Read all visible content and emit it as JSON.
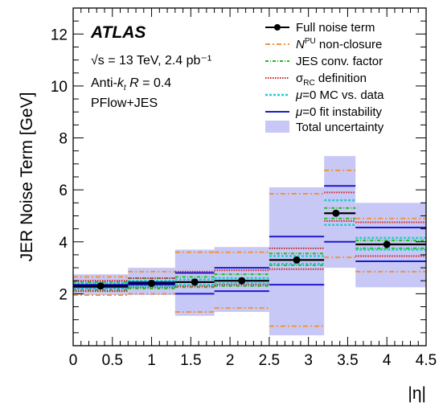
{
  "chart_data": {
    "type": "scatter",
    "xlabel": "|η|",
    "ylabel": "JER Noise Term [GeV]",
    "xlim": [
      0,
      4.5
    ],
    "ylim": [
      0,
      13
    ],
    "x_ticks": [
      "0",
      "0.5",
      "1",
      "1.5",
      "2",
      "2.5",
      "3",
      "3.5",
      "4",
      "4.5"
    ],
    "y_ticks": [
      "2",
      "4",
      "6",
      "8",
      "10",
      "12"
    ],
    "annotations": {
      "experiment": "ATLAS",
      "energy": "√s = 13 TeV, 2.4 pb⁻¹",
      "algorithm": "Anti-k  R = 0.4",
      "reco": "PFlow+JES"
    },
    "legend_placement": "top-right",
    "legend": [
      "Full noise term",
      "N^PU non-closure",
      "JES conv. factor",
      "σRC definition",
      "μ=0 MC vs. data",
      "μ=0 fit instability",
      "Total uncertainty"
    ],
    "colors": {
      "data": "#000000",
      "npu_nonclosure": "#f0943c",
      "jes_conv": "#22bb22",
      "sigma_rc": "#cc2222",
      "mu0_mc_data": "#22cccc",
      "mu0_fit": "#1a1acc",
      "total_unc": "#c8c8f6"
    },
    "bins": [
      {
        "lo": 0.0,
        "hi": 0.7,
        "x": 0.35,
        "y": 2.3,
        "total": [
          1.95,
          2.75
        ],
        "npu": [
          1.95,
          2.65
        ],
        "jes": [
          2.15,
          2.45
        ],
        "rc": [
          2.1,
          2.5
        ],
        "mc": [
          2.2,
          2.4
        ],
        "fit": [
          2.25,
          2.35
        ]
      },
      {
        "lo": 0.7,
        "hi": 1.3,
        "x": 1.0,
        "y": 2.4,
        "total": [
          1.95,
          3.0
        ],
        "npu": [
          2.0,
          2.85
        ],
        "jes": [
          2.2,
          2.6
        ],
        "rc": [
          2.25,
          2.6
        ],
        "mc": [
          2.3,
          2.5
        ],
        "fit": [
          2.35,
          2.45
        ]
      },
      {
        "lo": 1.3,
        "hi": 1.8,
        "x": 1.55,
        "y": 2.45,
        "total": [
          1.15,
          3.7
        ],
        "npu": [
          1.3,
          3.6
        ],
        "jes": [
          2.25,
          2.65
        ],
        "rc": [
          2.3,
          2.85
        ],
        "mc": [
          2.35,
          2.55
        ],
        "fit": [
          2.0,
          2.8
        ]
      },
      {
        "lo": 1.8,
        "hi": 2.5,
        "x": 2.15,
        "y": 2.5,
        "total": [
          1.3,
          3.8
        ],
        "npu": [
          1.45,
          3.6
        ],
        "jes": [
          2.3,
          2.75
        ],
        "rc": [
          2.35,
          2.9
        ],
        "mc": [
          2.4,
          2.6
        ],
        "fit": [
          2.1,
          3.0
        ]
      },
      {
        "lo": 2.5,
        "hi": 3.2,
        "x": 2.85,
        "y": 3.3,
        "total": [
          0.4,
          6.1
        ],
        "npu": [
          0.75,
          5.85
        ],
        "jes": [
          3.1,
          3.55
        ],
        "rc": [
          2.95,
          3.75
        ],
        "mc": [
          3.15,
          3.45
        ],
        "fit": [
          2.35,
          4.2
        ]
      },
      {
        "lo": 3.2,
        "hi": 3.6,
        "x": 3.35,
        "y": 5.1,
        "total": [
          3.0,
          7.3
        ],
        "npu": [
          3.4,
          6.75
        ],
        "jes": [
          4.9,
          5.3
        ],
        "rc": [
          4.8,
          5.9
        ],
        "mc": [
          4.65,
          5.6
        ],
        "fit": [
          4.0,
          6.15
        ]
      },
      {
        "lo": 3.6,
        "hi": 4.5,
        "x": 4.0,
        "y": 3.9,
        "total": [
          2.25,
          5.5
        ],
        "npu": [
          2.85,
          4.9
        ],
        "jes": [
          3.75,
          4.05
        ],
        "rc": [
          3.45,
          4.75
        ],
        "mc": [
          3.7,
          4.15
        ],
        "fit": [
          3.25,
          4.55
        ]
      }
    ]
  }
}
